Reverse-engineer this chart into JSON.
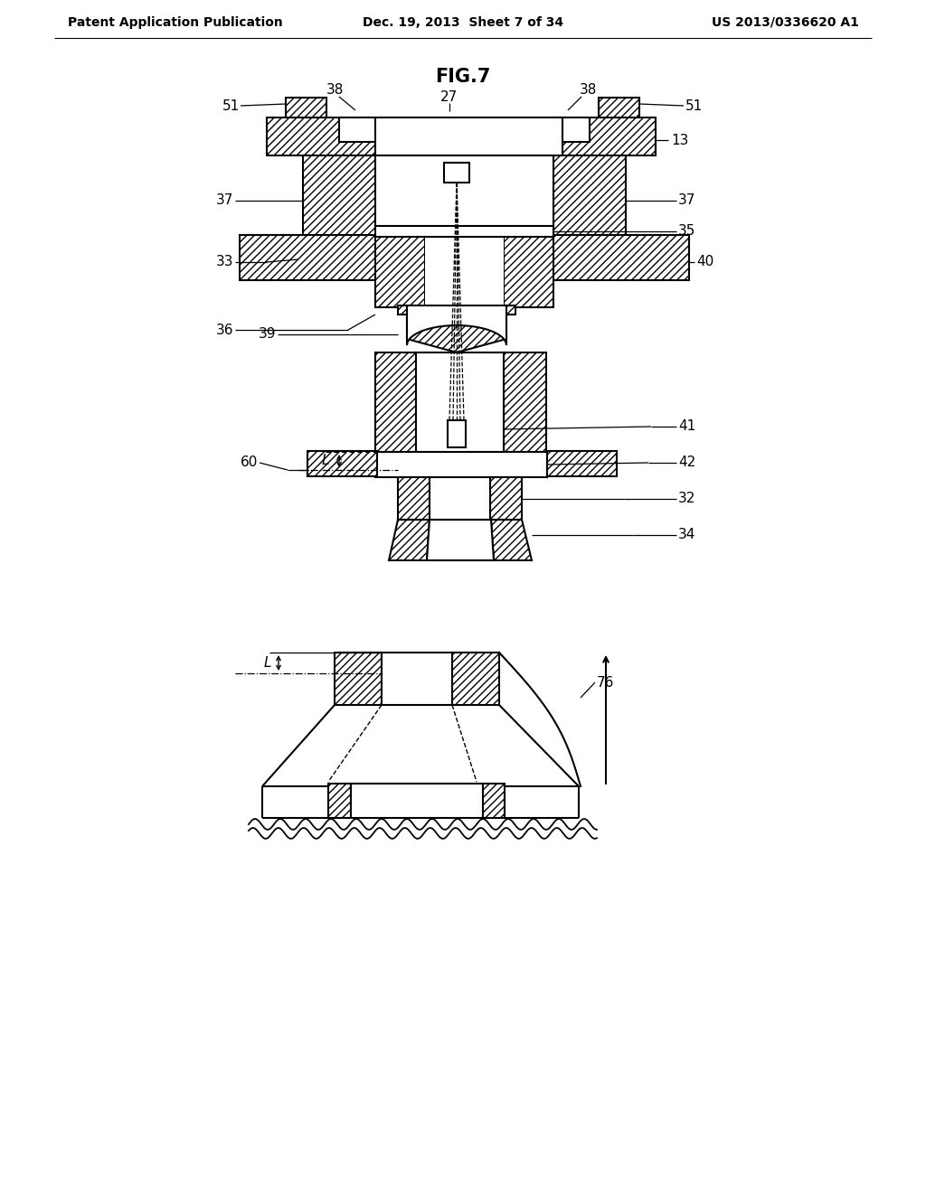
{
  "title": "FIG.7",
  "header_left": "Patent Application Publication",
  "header_center": "Dec. 19, 2013  Sheet 7 of 34",
  "header_right": "US 2013/0336620 A1",
  "background": "#ffffff",
  "line_color": "#000000"
}
